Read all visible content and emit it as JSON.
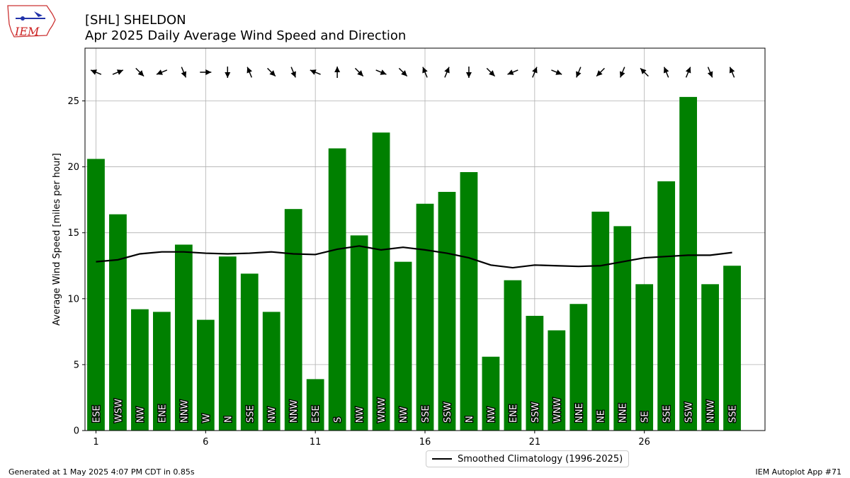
{
  "header": {
    "station_title": "[SHL] SHELDON",
    "subtitle": "Apr 2025 Daily Average Wind Speed and Direction"
  },
  "logo": {
    "text": "IEM"
  },
  "footer": {
    "generated": "Generated at 1 May 2025 4:07 PM CDT in 0.85s",
    "app": "IEM Autoplot App #71"
  },
  "legend": {
    "climatology_label": "Smoothed Climatology (1996-2025)"
  },
  "colors": {
    "bar": "#008000",
    "line": "#000000",
    "grid": "#b0b0b0"
  },
  "chart_data": {
    "type": "bar",
    "title": "[SHL] SHELDON",
    "subtitle": "Apr 2025 Daily Average Wind Speed and Direction",
    "ylabel": "Average Wind Speed [miles per hour]",
    "xlabel": "",
    "x_ticks": [
      1,
      6,
      11,
      16,
      21,
      26
    ],
    "y_ticks": [
      0,
      5,
      10,
      15,
      20,
      25
    ],
    "xlim": [
      0.5,
      31.5
    ],
    "ylim": [
      0,
      29
    ],
    "grid": true,
    "legend_position": "below",
    "days": [
      1,
      2,
      3,
      4,
      5,
      6,
      7,
      8,
      9,
      10,
      11,
      12,
      13,
      14,
      15,
      16,
      17,
      18,
      19,
      20,
      21,
      22,
      23,
      24,
      25,
      26,
      27,
      28,
      29,
      30
    ],
    "series": [
      {
        "kind": "bar",
        "values": [
          20.6,
          16.4,
          9.2,
          9.0,
          14.1,
          8.4,
          13.2,
          11.9,
          9.0,
          16.8,
          3.9,
          21.4,
          14.8,
          22.6,
          12.8,
          17.2,
          18.1,
          19.6,
          5.6,
          11.4,
          8.7,
          7.6,
          9.6,
          16.6,
          15.5,
          11.1,
          18.9,
          25.3,
          11.1,
          12.5
        ],
        "directions": [
          "ESE",
          "WSW",
          "NW",
          "ENE",
          "NNW",
          "W",
          "N",
          "SSE",
          "NW",
          "NNW",
          "ESE",
          "S",
          "NW",
          "WNW",
          "NW",
          "SSE",
          "SSW",
          "N",
          "NW",
          "ENE",
          "SSW",
          "WNW",
          "NNE",
          "NE",
          "NNE",
          "SE",
          "SSE",
          "SSW",
          "NNW",
          "SSE"
        ]
      },
      {
        "kind": "line",
        "name": "Smoothed Climatology (1996-2025)",
        "values": [
          12.8,
          12.95,
          13.4,
          13.55,
          13.55,
          13.45,
          13.4,
          13.45,
          13.55,
          13.4,
          13.35,
          13.75,
          14.0,
          13.7,
          13.9,
          13.7,
          13.45,
          13.1,
          12.55,
          12.35,
          12.55,
          12.5,
          12.45,
          12.5,
          12.8,
          13.1,
          13.2,
          13.3,
          13.3,
          13.5
        ]
      }
    ]
  }
}
